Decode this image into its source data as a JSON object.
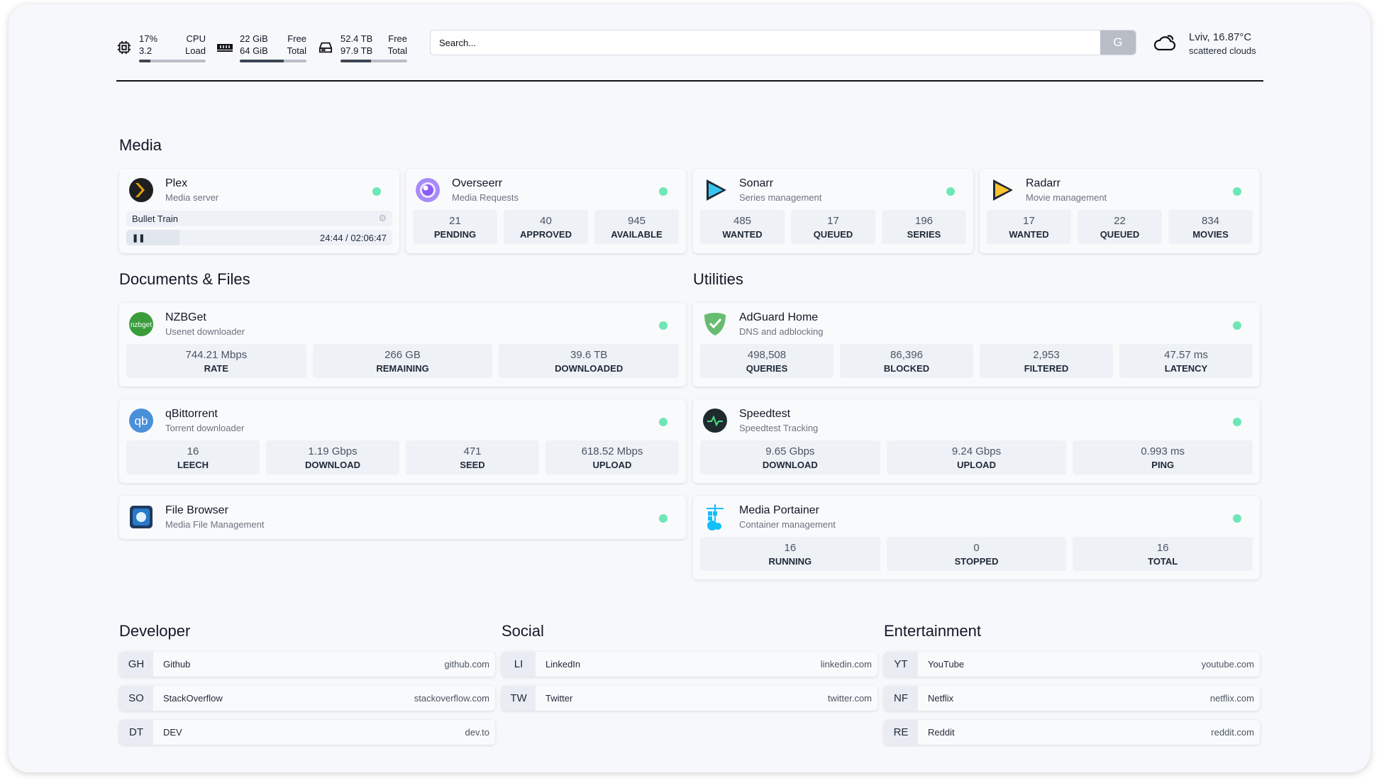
{
  "header": {
    "cpu": {
      "icon": "cpu-icon",
      "value": "17%",
      "value_label": "CPU",
      "load": "3.2",
      "load_label": "Load",
      "percent": 17
    },
    "memory": {
      "icon": "memory-icon",
      "free": "22 GiB",
      "free_label": "Free",
      "total": "64 GiB",
      "total_label": "Total",
      "percent": 66
    },
    "disk": {
      "icon": "disk-icon",
      "free": "52.4 TB",
      "free_label": "Free",
      "total": "97.9 TB",
      "total_label": "Total",
      "percent": 46
    },
    "search": {
      "placeholder": "Search...",
      "button": "G"
    },
    "weather": {
      "icon": "cloud-icon",
      "location": "Lviv, 16.87°C",
      "description": "scattered clouds"
    }
  },
  "sections": {
    "media": "Media",
    "documents": "Documents & Files",
    "utilities": "Utilities",
    "developer": "Developer",
    "social": "Social",
    "entertainment": "Entertainment"
  },
  "cards": [
    {
      "id": "plex",
      "title": "Plex",
      "subtitle": "Media server",
      "icon": "plex-icon",
      "color": "#e5a00d",
      "stream": {
        "title": "Bullet Train",
        "time": "24:44 / 02:06:47",
        "progress_percent": 20
      }
    },
    {
      "id": "overseerr",
      "title": "Overseerr",
      "subtitle": "Media Requests",
      "icon": "overseerr-icon",
      "color": "#8b5cf6",
      "stats": [
        {
          "v": "21",
          "l": "PENDING"
        },
        {
          "v": "40",
          "l": "APPROVED"
        },
        {
          "v": "945",
          "l": "AVAILABLE"
        }
      ]
    },
    {
      "id": "sonarr",
      "title": "Sonarr",
      "subtitle": "Series management",
      "icon": "sonarr-icon",
      "color": "#35c5f0",
      "stats": [
        {
          "v": "485",
          "l": "WANTED"
        },
        {
          "v": "17",
          "l": "QUEUED"
        },
        {
          "v": "196",
          "l": "SERIES"
        }
      ]
    },
    {
      "id": "radarr",
      "title": "Radarr",
      "subtitle": "Movie management",
      "icon": "radarr-icon",
      "color": "#ffc230",
      "stats": [
        {
          "v": "17",
          "l": "WANTED"
        },
        {
          "v": "22",
          "l": "QUEUED"
        },
        {
          "v": "834",
          "l": "MOVIES"
        }
      ]
    },
    {
      "id": "nzbget",
      "title": "NZBGet",
      "subtitle": "Usenet downloader",
      "icon": "nzbget-icon",
      "color": "#3a9c3a",
      "stats": [
        {
          "v": "744.21 Mbps",
          "l": "RATE"
        },
        {
          "v": "266 GB",
          "l": "REMAINING"
        },
        {
          "v": "39.6 TB",
          "l": "DOWNLOADED"
        }
      ]
    },
    {
      "id": "qbittorrent",
      "title": "qBittorrent",
      "subtitle": "Torrent downloader",
      "icon": "qbittorrent-icon",
      "color": "#4a90d9",
      "stats": [
        {
          "v": "16",
          "l": "LEECH"
        },
        {
          "v": "1.19 Gbps",
          "l": "DOWNLOAD"
        },
        {
          "v": "471",
          "l": "SEED"
        },
        {
          "v": "618.52 Mbps",
          "l": "UPLOAD"
        }
      ]
    },
    {
      "id": "filebrowser",
      "title": "File Browser",
      "subtitle": "Media File Management",
      "icon": "file-browser-icon",
      "color": "#2979c9"
    },
    {
      "id": "adguard",
      "title": "AdGuard Home",
      "subtitle": "DNS and adblocking",
      "icon": "adguard-shield-icon",
      "color": "#68bc71",
      "stats": [
        {
          "v": "498,508",
          "l": "QUERIES"
        },
        {
          "v": "86,396",
          "l": "BLOCKED"
        },
        {
          "v": "2,953",
          "l": "FILTERED"
        },
        {
          "v": "47.57 ms",
          "l": "LATENCY"
        }
      ]
    },
    {
      "id": "speedtest",
      "title": "Speedtest",
      "subtitle": "Speedtest Tracking",
      "icon": "speedtest-icon",
      "color": "#1f2a2e",
      "stats": [
        {
          "v": "9.65 Gbps",
          "l": "DOWNLOAD"
        },
        {
          "v": "9.24 Gbps",
          "l": "UPLOAD"
        },
        {
          "v": "0.993 ms",
          "l": "PING"
        }
      ]
    },
    {
      "id": "portainer",
      "title": "Media Portainer",
      "subtitle": "Container management",
      "icon": "portainer-icon",
      "color": "#13bef9",
      "stats": [
        {
          "v": "16",
          "l": "RUNNING"
        },
        {
          "v": "0",
          "l": "STOPPED"
        },
        {
          "v": "16",
          "l": "TOTAL"
        }
      ]
    }
  ],
  "status_color": "#6ee7b7",
  "links": {
    "developer": [
      {
        "abbr": "GH",
        "name": "Github",
        "url": "github.com"
      },
      {
        "abbr": "SO",
        "name": "StackOverflow",
        "url": "stackoverflow.com"
      },
      {
        "abbr": "DT",
        "name": "DEV",
        "url": "dev.to"
      }
    ],
    "social": [
      {
        "abbr": "LI",
        "name": "LinkedIn",
        "url": "linkedin.com"
      },
      {
        "abbr": "TW",
        "name": "Twitter",
        "url": "twitter.com"
      }
    ],
    "entertainment": [
      {
        "abbr": "YT",
        "name": "YouTube",
        "url": "youtube.com"
      },
      {
        "abbr": "NF",
        "name": "Netflix",
        "url": "netflix.com"
      },
      {
        "abbr": "RE",
        "name": "Reddit",
        "url": "reddit.com"
      }
    ]
  }
}
